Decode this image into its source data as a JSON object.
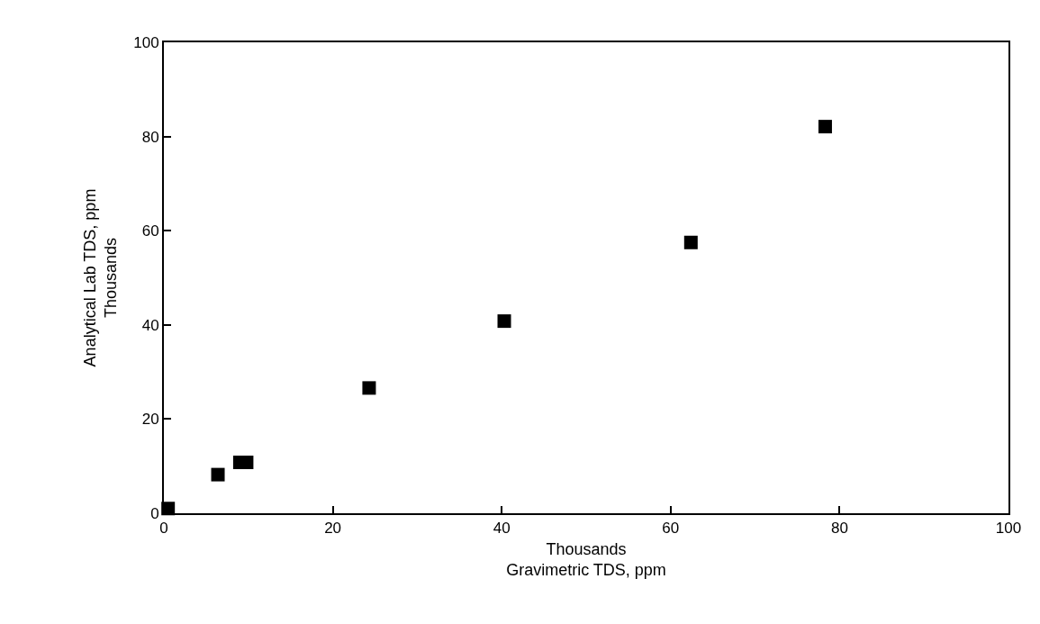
{
  "chart_data": {
    "type": "scatter",
    "xlabel": "Thousands\nGravimetric TDS, ppm",
    "ylabel": "Analytical Lab TDS, ppm\nThousands",
    "x": [
      0.5,
      6.4,
      9.0,
      9.8,
      24.3,
      40.3,
      62.4,
      78.3
    ],
    "values": [
      1.0,
      8.2,
      10.8,
      10.8,
      26.6,
      40.8,
      57.5,
      82.1
    ],
    "color": "#000000",
    "marker": "square",
    "xlim": [
      0,
      100
    ],
    "xticks": [
      0,
      20,
      40,
      60,
      80,
      100
    ],
    "ylim": [
      0,
      100
    ],
    "yticks": [
      0,
      20,
      40,
      60,
      80,
      100
    ]
  }
}
